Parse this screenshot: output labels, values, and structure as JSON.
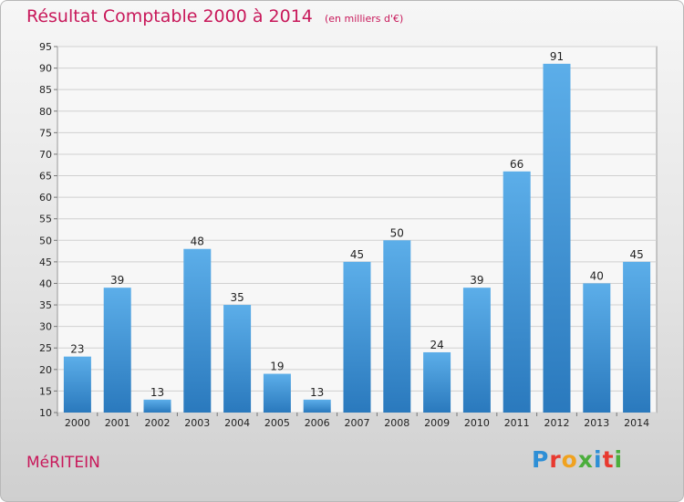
{
  "title": "Résultat Comptable 2000 à 2014",
  "unit_label": "(en milliers d'€)",
  "commune": "MéRITEIN",
  "logo": {
    "text": "Proxiti",
    "letter_colors": [
      "#2e8fd6",
      "#e8392f",
      "#f0a21f",
      "#4bae3c",
      "#2e8fd6",
      "#e8392f",
      "#4bae3c"
    ]
  },
  "colors": {
    "title": "#c8185a",
    "bar_top": "#5caee9",
    "bar_bottom": "#2a79bd",
    "grid": "#d0d0d0"
  },
  "chart_data": {
    "type": "bar",
    "title": "Résultat Comptable 2000 à 2014",
    "subtitle": "(en milliers d'€)",
    "categories": [
      "2000",
      "2001",
      "2002",
      "2003",
      "2004",
      "2005",
      "2006",
      "2007",
      "2008",
      "2009",
      "2010",
      "2011",
      "2012",
      "2013",
      "2014"
    ],
    "values": [
      23,
      39,
      13,
      48,
      35,
      19,
      13,
      45,
      50,
      24,
      39,
      66,
      91,
      40,
      45
    ],
    "data_labels": [
      "23",
      "39",
      "13",
      "48",
      "35",
      "19",
      "13",
      "45",
      "50",
      "24",
      "39",
      "66",
      "91",
      "40",
      "45"
    ],
    "ylim": [
      10,
      95
    ],
    "yticks": [
      "10",
      "15",
      "20",
      "25",
      "30",
      "35",
      "40",
      "45",
      "50",
      "55",
      "60",
      "65",
      "70",
      "75",
      "80",
      "85",
      "90",
      "95"
    ],
    "grid": true,
    "legend": "none"
  }
}
